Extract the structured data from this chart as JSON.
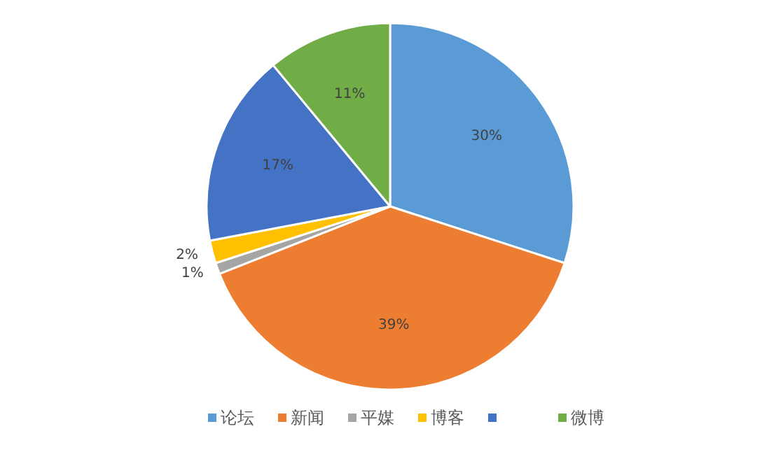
{
  "chart_data": {
    "type": "pie",
    "categories": [
      "论坛",
      "新闻",
      "平媒",
      "博客",
      null,
      "微博"
    ],
    "values": [
      30,
      39,
      1,
      2,
      17,
      11
    ],
    "colors": [
      "#5b9bd5",
      "#ed7d31",
      "#a5a5a5",
      "#ffc000",
      "#4472c4",
      "#70ad47"
    ],
    "value_labels": [
      "30%",
      "39%",
      "1%",
      "2%",
      "17%",
      "11%"
    ],
    "legend": "bottom"
  }
}
